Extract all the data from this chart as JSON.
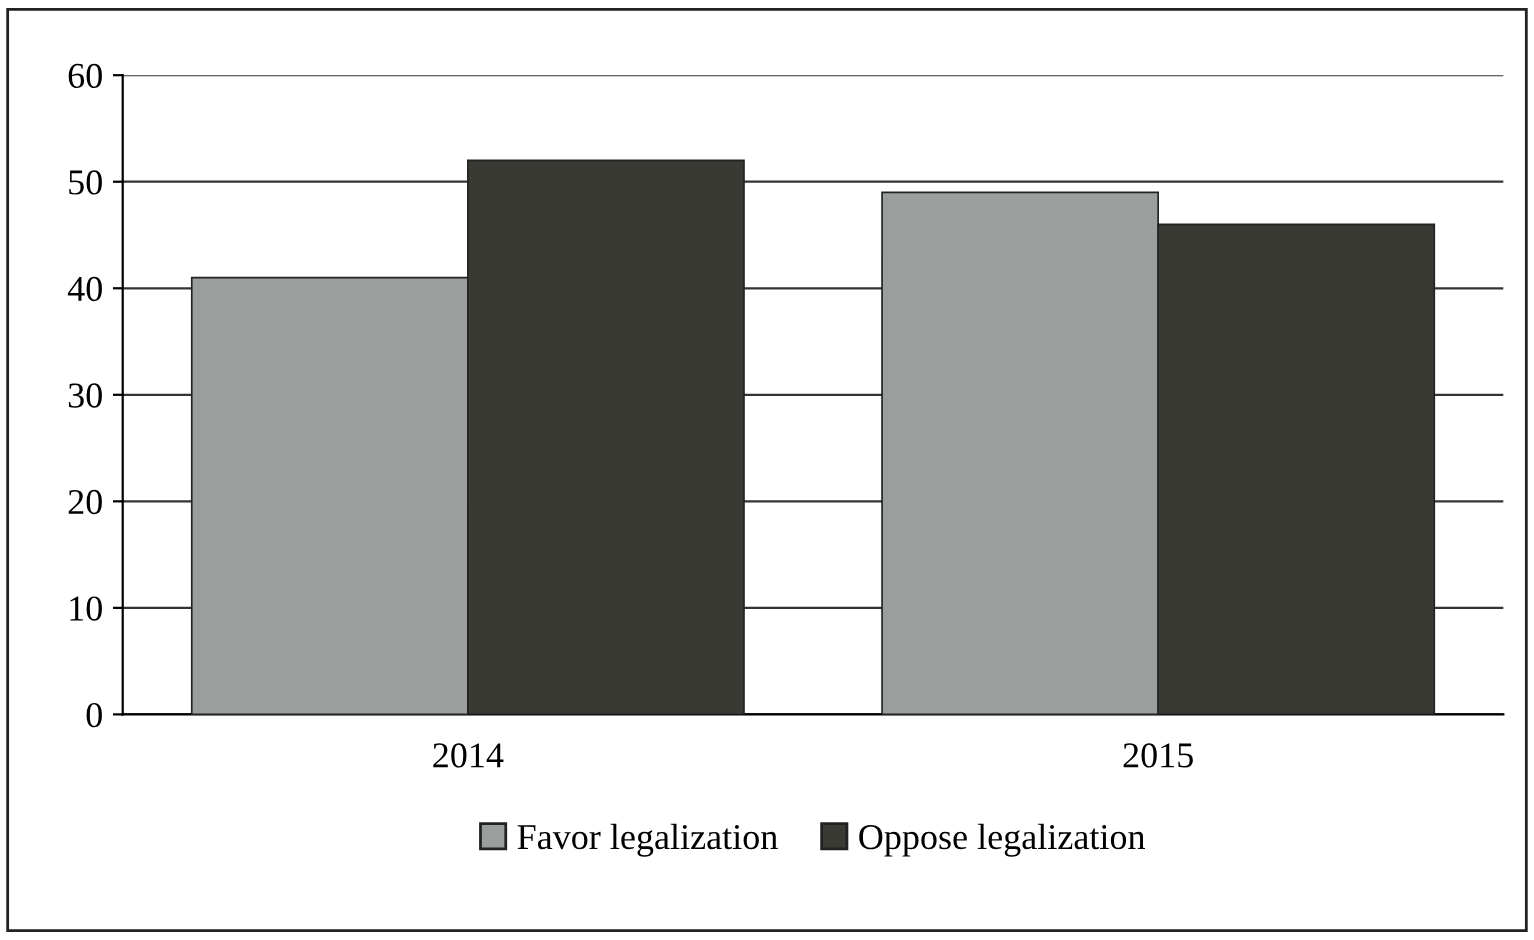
{
  "chart_data": {
    "type": "bar",
    "categories": [
      "2014",
      "2015"
    ],
    "series": [
      {
        "name": "Favor legalization",
        "color": "#9a9e9c",
        "values": [
          41,
          49
        ]
      },
      {
        "name": "Oppose legalization",
        "color": "#383a33",
        "values": [
          52,
          46
        ]
      }
    ],
    "ylim": [
      0,
      60
    ],
    "yticks": [
      0,
      10,
      20,
      30,
      40,
      50,
      60
    ],
    "grid": "y",
    "legend": "bottom"
  }
}
